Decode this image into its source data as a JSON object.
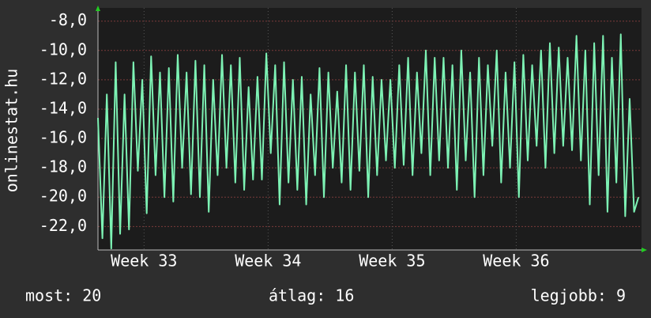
{
  "chart_data": {
    "type": "line",
    "ylabel": "onlinestat.hu",
    "color": "#7df2b4",
    "grid": true,
    "x": [
      0,
      0.25,
      0.5,
      0.75,
      1,
      1.25,
      1.5,
      1.75,
      2,
      2.25,
      2.5,
      2.75,
      3,
      3.25,
      3.5,
      3.75,
      4,
      4.25,
      4.5,
      4.75,
      5,
      5.25,
      5.5,
      5.75,
      6,
      6.25,
      6.5,
      6.75,
      7,
      7.25,
      7.5,
      7.75,
      8,
      8.25,
      8.5,
      8.75,
      9,
      9.25,
      9.5,
      9.75,
      10,
      10.25,
      10.5,
      10.75,
      11,
      11.25,
      11.5,
      11.75,
      12,
      12.25,
      12.5,
      12.75,
      13,
      13.25,
      13.5,
      13.75,
      14,
      14.25,
      14.5,
      14.75,
      15,
      15.25,
      15.5,
      15.75,
      16,
      16.25,
      16.5,
      16.75,
      17,
      17.25,
      17.5,
      17.75,
      18,
      18.25,
      18.5,
      18.75,
      19,
      19.25,
      19.5,
      19.75,
      20,
      20.25,
      20.5,
      20.75,
      21,
      21.25,
      21.5,
      21.75,
      22,
      22.25,
      22.5,
      22.75,
      23,
      23.25,
      23.5,
      23.75,
      24,
      24.25,
      24.5,
      24.75,
      25,
      25.25,
      25.5,
      25.75,
      26,
      26.25,
      26.5,
      26.75,
      27,
      27.25,
      27.5,
      27.75,
      28,
      28.25,
      28.5,
      28.75,
      29,
      29.25,
      29.5,
      29.75,
      30,
      30.25,
      30.5
    ],
    "values": [
      -14.6,
      -22.8,
      -13.0,
      -23.5,
      -10.8,
      -22.5,
      -13.0,
      -22.2,
      -10.8,
      -18.2,
      -12.0,
      -21.1,
      -10.4,
      -18.5,
      -11.5,
      -20.0,
      -11.2,
      -20.3,
      -10.3,
      -18.0,
      -11.5,
      -19.8,
      -10.7,
      -20.0,
      -11.0,
      -21.0,
      -12.0,
      -18.5,
      -10.3,
      -18.0,
      -11.0,
      -19.0,
      -10.5,
      -19.5,
      -12.5,
      -18.8,
      -11.8,
      -18.8,
      -10.2,
      -17.0,
      -11.0,
      -20.5,
      -10.8,
      -19.0,
      -12.0,
      -19.5,
      -11.8,
      -20.5,
      -13.0,
      -18.5,
      -11.2,
      -20.0,
      -11.5,
      -18.0,
      -12.8,
      -19.0,
      -11.0,
      -19.5,
      -11.5,
      -18.2,
      -11.0,
      -20.0,
      -11.8,
      -18.5,
      -12.0,
      -17.5,
      -12.0,
      -18.0,
      -11.0,
      -17.8,
      -10.5,
      -18.5,
      -11.5,
      -17.0,
      -10.0,
      -18.5,
      -10.5,
      -17.5,
      -10.5,
      -18.0,
      -11.0,
      -19.5,
      -10.0,
      -17.5,
      -11.5,
      -20.0,
      -10.5,
      -18.5,
      -11.0,
      -16.5,
      -10.0,
      -19.0,
      -11.5,
      -18.0,
      -10.8,
      -20.0,
      -10.3,
      -17.5,
      -11.0,
      -16.5,
      -10.0,
      -18.0,
      -9.5,
      -17.0,
      -9.8,
      -16.5,
      -10.5,
      -16.8,
      -9.0,
      -17.5,
      -10.0,
      -20.5,
      -9.5,
      -18.5,
      -9.0,
      -21.0,
      -10.5,
      -19.0,
      -8.9,
      -21.3,
      -13.3,
      -21.0,
      -20.0
    ],
    "xlim": [
      0,
      30.67
    ],
    "xticks": [
      {
        "value": 2.6,
        "label": "Week 33"
      },
      {
        "value": 9.6,
        "label": "Week 34"
      },
      {
        "value": 16.6,
        "label": "Week 35"
      },
      {
        "value": 23.6,
        "label": "Week 36"
      }
    ],
    "ylim": [
      -23.6,
      -7.1
    ],
    "yticks": [
      {
        "value": -22,
        "label": "-22,0"
      },
      {
        "value": -20,
        "label": "-20,0"
      },
      {
        "value": -18,
        "label": "-18,0"
      },
      {
        "value": -16,
        "label": "-16,0"
      },
      {
        "value": -14,
        "label": "-14,0"
      },
      {
        "value": -12,
        "label": "-12,0"
      },
      {
        "value": -10,
        "label": "-10,0"
      },
      {
        "value": -8,
        "label": "-8,0"
      }
    ]
  },
  "footer": {
    "current": "most: 20",
    "average": "átlag: 16",
    "best": "legjobb: 9"
  }
}
